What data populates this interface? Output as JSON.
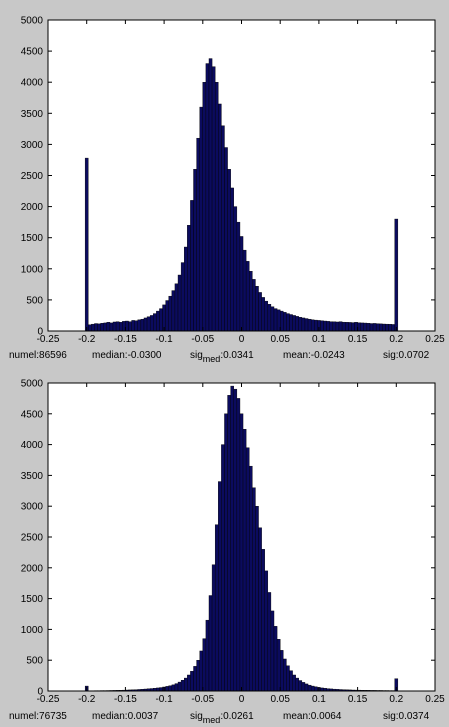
{
  "chart_data": [
    {
      "type": "bar",
      "xlim": [
        -0.25,
        0.25
      ],
      "ylim": [
        0,
        5000
      ],
      "xticks": [
        "-0.25",
        "-0.2",
        "-0.15",
        "-0.1",
        "-0.05",
        "0",
        "0.05",
        "0.1",
        "0.15",
        "0.2",
        "0.25"
      ],
      "yticks": [
        "0",
        "500",
        "1000",
        "1500",
        "2000",
        "2500",
        "3000",
        "3500",
        "4000",
        "4500",
        "5000"
      ],
      "bar_color": "#0b0b5e",
      "bin_width": 0.004,
      "x": [
        -0.2,
        -0.196,
        -0.192,
        -0.188,
        -0.184,
        -0.18,
        -0.176,
        -0.172,
        -0.168,
        -0.164,
        -0.16,
        -0.156,
        -0.152,
        -0.148,
        -0.144,
        -0.14,
        -0.136,
        -0.132,
        -0.128,
        -0.124,
        -0.12,
        -0.116,
        -0.112,
        -0.108,
        -0.104,
        -0.1,
        -0.096,
        -0.092,
        -0.088,
        -0.084,
        -0.08,
        -0.076,
        -0.072,
        -0.068,
        -0.064,
        -0.06,
        -0.056,
        -0.052,
        -0.048,
        -0.044,
        -0.04,
        -0.036,
        -0.032,
        -0.028,
        -0.024,
        -0.02,
        -0.016,
        -0.012,
        -0.008,
        -0.004,
        0,
        0.004,
        0.008,
        0.012,
        0.016,
        0.02,
        0.024,
        0.028,
        0.032,
        0.036,
        0.04,
        0.044,
        0.048,
        0.052,
        0.056,
        0.06,
        0.064,
        0.068,
        0.072,
        0.076,
        0.08,
        0.084,
        0.088,
        0.092,
        0.096,
        0.1,
        0.104,
        0.108,
        0.112,
        0.116,
        0.12,
        0.124,
        0.128,
        0.132,
        0.136,
        0.14,
        0.144,
        0.148,
        0.152,
        0.156,
        0.16,
        0.164,
        0.168,
        0.172,
        0.176,
        0.18,
        0.184,
        0.188,
        0.192,
        0.196,
        0.2
      ],
      "values": [
        2780,
        100,
        110,
        120,
        115,
        125,
        130,
        140,
        130,
        145,
        150,
        140,
        155,
        160,
        150,
        170,
        165,
        180,
        190,
        210,
        230,
        250,
        280,
        320,
        360,
        420,
        490,
        560,
        650,
        760,
        900,
        1100,
        1350,
        1700,
        2100,
        2600,
        3100,
        3600,
        4000,
        4300,
        4380,
        4250,
        4000,
        3650,
        3300,
        2950,
        2600,
        2300,
        2000,
        1750,
        1520,
        1300,
        1120,
        960,
        830,
        720,
        620,
        540,
        480,
        430,
        390,
        360,
        340,
        320,
        300,
        280,
        265,
        250,
        235,
        220,
        210,
        200,
        190,
        180,
        175,
        170,
        165,
        160,
        155,
        150,
        148,
        145,
        150,
        142,
        140,
        138,
        135,
        140,
        132,
        130,
        128,
        125,
        120,
        122,
        118,
        115,
        112,
        110,
        108,
        105,
        1800
      ],
      "stats": {
        "numel": "numel:86596",
        "median": "median:-0.0300",
        "sig_prefix": "sig",
        "sig_sub": "med",
        "sig_value": ":0.0341",
        "mean": "mean:-0.0243",
        "sig": "sig:0.0702"
      }
    },
    {
      "type": "bar",
      "xlim": [
        -0.25,
        0.25
      ],
      "ylim": [
        0,
        5000
      ],
      "xticks": [
        "-0.25",
        "-0.2",
        "-0.15",
        "-0.1",
        "-0.05",
        "0",
        "0.05",
        "0.1",
        "0.15",
        "0.2",
        "0.25"
      ],
      "yticks": [
        "0",
        "500",
        "1000",
        "1500",
        "2000",
        "2500",
        "3000",
        "3500",
        "4000",
        "4500",
        "5000"
      ],
      "bar_color": "#0b0b5e",
      "bin_width": 0.004,
      "x": [
        -0.2,
        -0.196,
        -0.192,
        -0.188,
        -0.184,
        -0.18,
        -0.176,
        -0.172,
        -0.168,
        -0.164,
        -0.16,
        -0.156,
        -0.152,
        -0.148,
        -0.144,
        -0.14,
        -0.136,
        -0.132,
        -0.128,
        -0.124,
        -0.12,
        -0.116,
        -0.112,
        -0.108,
        -0.104,
        -0.1,
        -0.096,
        -0.092,
        -0.088,
        -0.084,
        -0.08,
        -0.076,
        -0.072,
        -0.068,
        -0.064,
        -0.06,
        -0.056,
        -0.052,
        -0.048,
        -0.044,
        -0.04,
        -0.036,
        -0.032,
        -0.028,
        -0.024,
        -0.02,
        -0.016,
        -0.012,
        -0.008,
        -0.004,
        0,
        0.004,
        0.008,
        0.012,
        0.016,
        0.02,
        0.024,
        0.028,
        0.032,
        0.036,
        0.04,
        0.044,
        0.048,
        0.052,
        0.056,
        0.06,
        0.064,
        0.068,
        0.072,
        0.076,
        0.08,
        0.084,
        0.088,
        0.092,
        0.096,
        0.1,
        0.104,
        0.108,
        0.112,
        0.116,
        0.12,
        0.124,
        0.128,
        0.132,
        0.136,
        0.14,
        0.144,
        0.148,
        0.152,
        0.156,
        0.16,
        0.164,
        0.168,
        0.172,
        0.176,
        0.18,
        0.184,
        0.188,
        0.192,
        0.196,
        0.2
      ],
      "values": [
        80,
        5,
        5,
        6,
        6,
        7,
        7,
        8,
        9,
        10,
        11,
        12,
        14,
        16,
        18,
        20,
        22,
        25,
        28,
        32,
        36,
        40,
        45,
        50,
        56,
        65,
        75,
        85,
        100,
        120,
        145,
        175,
        210,
        260,
        320,
        400,
        500,
        650,
        850,
        1150,
        1550,
        2050,
        2700,
        3400,
        4000,
        4500,
        4800,
        4950,
        4900,
        4750,
        4500,
        4250,
        3950,
        3650,
        3300,
        3000,
        2650,
        2300,
        1950,
        1600,
        1300,
        1050,
        840,
        660,
        520,
        410,
        330,
        260,
        210,
        170,
        140,
        115,
        95,
        80,
        68,
        58,
        50,
        44,
        38,
        34,
        30,
        27,
        24,
        22,
        20,
        18,
        16,
        15,
        14,
        13,
        12,
        11,
        10,
        10,
        9,
        9,
        8,
        8,
        7,
        7,
        200
      ],
      "stats": {
        "numel": "numel:76735",
        "median": "median:0.0037",
        "sig_prefix": "sig",
        "sig_sub": "med",
        "sig_value": ":0.0261",
        "mean": "mean:0.0064",
        "sig": "sig:0.0374"
      }
    }
  ]
}
